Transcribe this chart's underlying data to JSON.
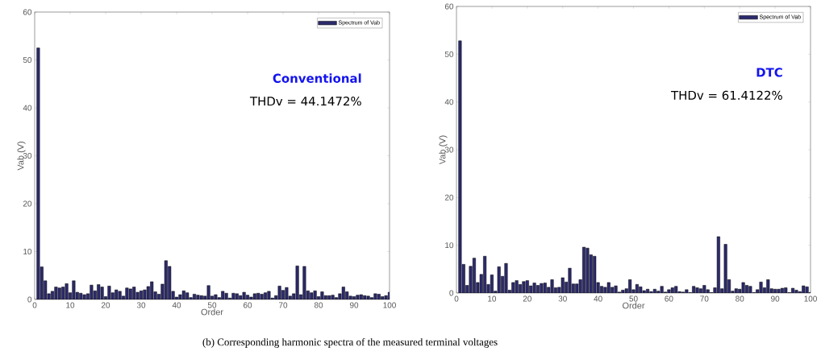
{
  "chart_data": [
    {
      "type": "bar",
      "xlabel": "Order",
      "ylabel": "Vab (V)",
      "xlim": [
        0,
        100
      ],
      "ylim": [
        0,
        60
      ],
      "xticks": [
        0,
        10,
        20,
        30,
        40,
        50,
        60,
        70,
        80,
        90,
        100
      ],
      "yticks": [
        0,
        10,
        20,
        30,
        40,
        50,
        60
      ],
      "legend": "top right",
      "grid": false,
      "x": [
        1,
        2,
        3,
        4,
        5,
        6,
        7,
        8,
        9,
        10,
        11,
        12,
        13,
        14,
        15,
        16,
        17,
        18,
        19,
        20,
        21,
        22,
        23,
        24,
        25,
        26,
        27,
        28,
        29,
        30,
        31,
        32,
        33,
        34,
        35,
        36,
        37,
        38,
        39,
        40,
        41,
        42,
        43,
        44,
        45,
        46,
        47,
        48,
        49,
        50,
        51,
        52,
        53,
        54,
        55,
        56,
        57,
        58,
        59,
        60,
        61,
        62,
        63,
        64,
        65,
        66,
        67,
        68,
        69,
        70,
        71,
        72,
        73,
        74,
        75,
        76,
        77,
        78,
        79,
        80,
        81,
        82,
        83,
        84,
        85,
        86,
        87,
        88,
        89,
        90,
        91,
        92,
        93,
        94,
        95,
        96,
        97,
        98,
        99,
        100
      ],
      "series": [
        {
          "name": "Spectrum of Vab",
          "color": "#2c2a6c",
          "values": [
            52.5,
            6.8,
            3.9,
            1.2,
            1.7,
            2.6,
            2.4,
            2.6,
            3.3,
            1.4,
            3.9,
            1.5,
            1.3,
            1.0,
            1.2,
            3.0,
            1.8,
            3.1,
            2.6,
            0.6,
            2.8,
            1.4,
            2.0,
            1.7,
            0.7,
            2.4,
            2.2,
            2.6,
            1.5,
            1.8,
            2.0,
            2.7,
            3.7,
            1.6,
            1.1,
            3.2,
            8.1,
            6.9,
            1.7,
            0.5,
            1.0,
            1.8,
            1.4,
            0.4,
            1.1,
            0.9,
            0.8,
            0.7,
            2.9,
            0.7,
            1.0,
            0.4,
            1.7,
            1.3,
            0.3,
            1.3,
            1.2,
            0.8,
            1.5,
            0.9,
            0.5,
            1.2,
            1.3,
            1.1,
            1.4,
            1.7,
            0.3,
            0.8,
            2.8,
            1.9,
            2.5,
            0.7,
            1.2,
            7.0,
            1.0,
            6.9,
            1.8,
            1.4,
            1.8,
            0.6,
            1.6,
            0.8,
            0.8,
            0.9,
            0.4,
            1.2,
            2.6,
            1.6,
            0.7,
            0.6,
            0.9,
            1.0,
            0.8,
            0.7,
            0.4,
            1.2,
            1.1,
            0.6,
            0.8,
            1.5
          ]
        }
      ],
      "annotations": [
        "Conventional",
        "THDv = 44.1472%"
      ]
    },
    {
      "type": "bar",
      "xlabel": "Order",
      "ylabel": "Vab (V)",
      "xlim": [
        0,
        100
      ],
      "ylim": [
        0,
        60
      ],
      "xticks": [
        0,
        10,
        20,
        30,
        40,
        50,
        60,
        70,
        80,
        90,
        100
      ],
      "yticks": [
        0,
        10,
        20,
        30,
        40,
        50,
        60
      ],
      "legend": "top right",
      "grid": false,
      "x": [
        1,
        2,
        3,
        4,
        5,
        6,
        7,
        8,
        9,
        10,
        11,
        12,
        13,
        14,
        15,
        16,
        17,
        18,
        19,
        20,
        21,
        22,
        23,
        24,
        25,
        26,
        27,
        28,
        29,
        30,
        31,
        32,
        33,
        34,
        35,
        36,
        37,
        38,
        39,
        40,
        41,
        42,
        43,
        44,
        45,
        46,
        47,
        48,
        49,
        50,
        51,
        52,
        53,
        54,
        55,
        56,
        57,
        58,
        59,
        60,
        61,
        62,
        63,
        64,
        65,
        66,
        67,
        68,
        69,
        70,
        71,
        72,
        73,
        74,
        75,
        76,
        77,
        78,
        79,
        80,
        81,
        82,
        83,
        84,
        85,
        86,
        87,
        88,
        89,
        90,
        91,
        92,
        93,
        94,
        95,
        96,
        97,
        98,
        99,
        100
      ],
      "series": [
        {
          "name": "Spectrum of Vab",
          "color": "#2c2a6c",
          "values": [
            52.8,
            6.0,
            1.6,
            5.6,
            7.3,
            2.2,
            3.9,
            7.7,
            1.8,
            3.8,
            0.4,
            5.5,
            3.5,
            6.2,
            0.6,
            2.2,
            2.6,
            1.8,
            2.4,
            2.6,
            1.5,
            2.1,
            1.6,
            2.0,
            2.1,
            1.2,
            2.8,
            1.1,
            1.2,
            3.2,
            2.3,
            5.2,
            1.9,
            1.9,
            2.8,
            9.6,
            9.4,
            8.0,
            7.7,
            2.2,
            1.4,
            1.2,
            2.2,
            1.2,
            1.5,
            0.2,
            0.6,
            0.9,
            2.8,
            0.7,
            1.8,
            1.3,
            0.5,
            0.8,
            0.3,
            0.8,
            0.4,
            1.4,
            0.2,
            0.7,
            1.1,
            1.4,
            0.3,
            0.2,
            0.7,
            0.1,
            1.4,
            1.1,
            0.9,
            1.6,
            0.7,
            0.1,
            1.1,
            11.8,
            0.9,
            10.2,
            2.8,
            0.4,
            0.9,
            0.8,
            2.2,
            1.6,
            1.4,
            0.1,
            0.7,
            2.3,
            1.1,
            2.8,
            0.9,
            0.8,
            0.8,
            1.0,
            1.1,
            0.1,
            1.0,
            0.6,
            0.3,
            1.5,
            1.3,
            0.1
          ]
        }
      ],
      "annotations": [
        "DTC",
        "THDv = 61.4122%",
        "(b)  Corresponding harmonic spectra of the measured terminal voltages"
      ]
    }
  ]
}
